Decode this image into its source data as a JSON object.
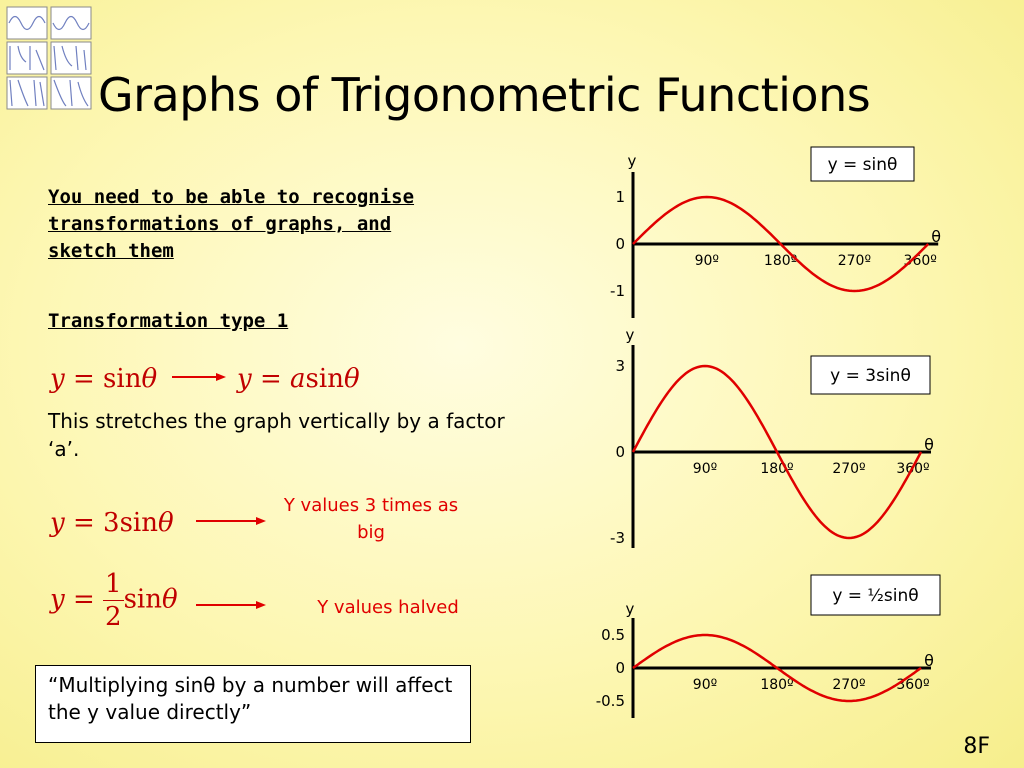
{
  "slide": {
    "title": "Graphs of Trigonometric Functions",
    "page_number": "8F",
    "intro": "You need to be able to recognise transformations of graphs, and sketch them",
    "transform_heading": "Transformation type 1",
    "stretch_text": "This stretches the graph vertically by a factor ‘a’.",
    "note_3": "Y values 3 times as big",
    "note_half": "Y values halved",
    "quote": "“Multiplying sinθ by a number will affect the y value directly”",
    "equations": {
      "eq1": {
        "y": "y",
        "eq": " = ",
        "fn": "sin",
        "theta": "θ"
      },
      "eq2": {
        "y": "y",
        "eq": " = ",
        "a": "a",
        "fn": "sin",
        "theta": "θ"
      },
      "eq3": {
        "y": "y",
        "eq": " = ",
        "coef": "3",
        "fn": "sin",
        "theta": "θ"
      },
      "eq4": {
        "y": "y",
        "eq": " = ",
        "num": "1",
        "den": "2",
        "fn": "sin",
        "theta": "θ"
      }
    },
    "colors": {
      "curve": "#e00000",
      "text_red": "#e00000",
      "math_red": "#c00000",
      "axis": "#000000"
    }
  },
  "chart_data": [
    {
      "type": "line",
      "label": "y = sinθ",
      "amplitude": 1,
      "x_ticks": [
        "90º",
        "180º",
        "270º",
        "360º"
      ],
      "x_values": [
        0,
        90,
        180,
        270,
        360
      ],
      "y_values": [
        0,
        1,
        0,
        -1,
        0
      ],
      "y_ticks": [
        "1",
        "0",
        "-1"
      ],
      "xlabel": "θ",
      "ylabel": "y",
      "xlim": [
        0,
        360
      ],
      "ylim": [
        -1,
        1
      ]
    },
    {
      "type": "line",
      "label": "y = 3sinθ",
      "amplitude": 3,
      "x_ticks": [
        "90º",
        "180º",
        "270º",
        "360º"
      ],
      "x_values": [
        0,
        90,
        180,
        270,
        360
      ],
      "y_values": [
        0,
        3,
        0,
        -3,
        0
      ],
      "y_ticks": [
        "3",
        "0",
        "-3"
      ],
      "xlabel": "θ",
      "ylabel": "y",
      "xlim": [
        0,
        360
      ],
      "ylim": [
        -3,
        3
      ]
    },
    {
      "type": "line",
      "label": "y = ½sinθ",
      "amplitude": 0.5,
      "x_ticks": [
        "90º",
        "180º",
        "270º",
        "360º"
      ],
      "x_values": [
        0,
        90,
        180,
        270,
        360
      ],
      "y_values": [
        0,
        0.5,
        0,
        -0.5,
        0
      ],
      "y_ticks": [
        "0.5",
        "0",
        "-0.5"
      ],
      "xlabel": "θ",
      "ylabel": "y",
      "xlim": [
        0,
        360
      ],
      "ylim": [
        -0.5,
        0.5
      ]
    }
  ]
}
